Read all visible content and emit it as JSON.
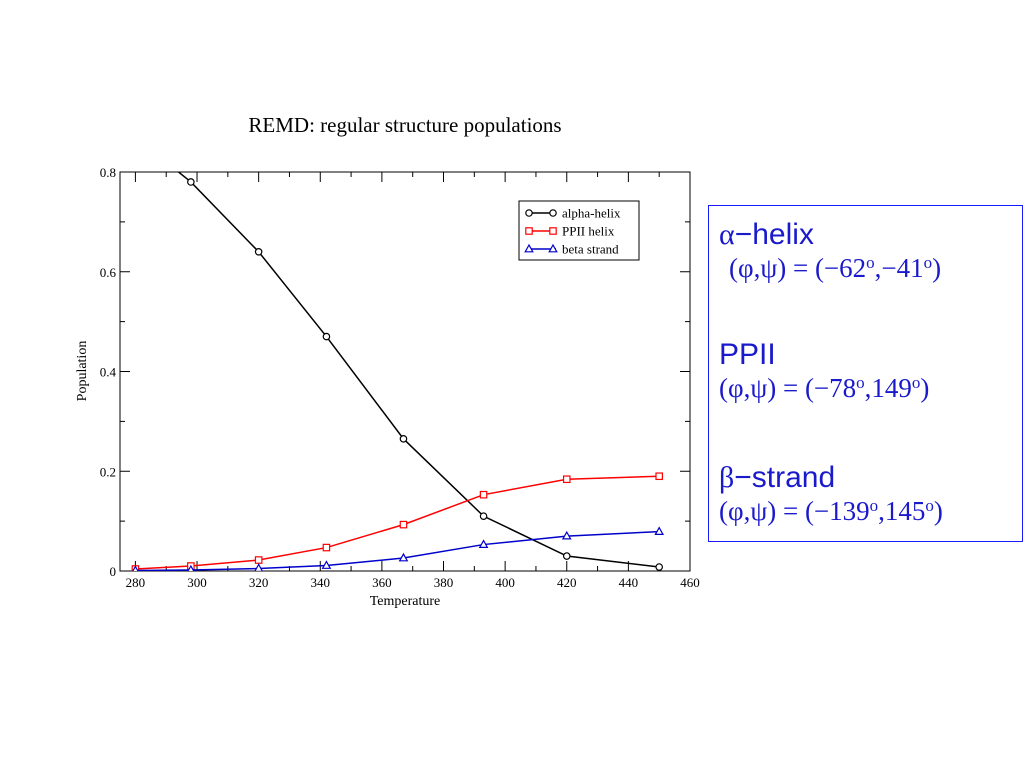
{
  "chart_data": {
    "type": "line",
    "title": "REMD: regular structure populations",
    "xlabel": "Temperature",
    "ylabel": "Population",
    "xlim": [
      275,
      460
    ],
    "ylim": [
      0,
      0.8
    ],
    "xticks": [
      "280",
      "300",
      "320",
      "340",
      "360",
      "380",
      "400",
      "420",
      "440",
      "460"
    ],
    "yticks": [
      "0",
      "0.2",
      "0.4",
      "0.6",
      "0.8"
    ],
    "grid": false,
    "legend_position": "top-right",
    "series": [
      {
        "name": "alpha-helix",
        "color": "#000000",
        "marker": "circle",
        "x": [
          280,
          298,
          320,
          342,
          367,
          393,
          420,
          450
        ],
        "values": [
          0.87,
          0.78,
          0.64,
          0.47,
          0.265,
          0.11,
          0.03,
          0.008
        ]
      },
      {
        "name": "PPII helix",
        "color": "#ff0000",
        "marker": "square",
        "x": [
          280,
          298,
          320,
          342,
          367,
          393,
          420,
          450
        ],
        "values": [
          0.004,
          0.01,
          0.022,
          0.047,
          0.093,
          0.153,
          0.184,
          0.19
        ]
      },
      {
        "name": "beta strand",
        "color": "#0000cc",
        "marker": "triangle",
        "x": [
          280,
          298,
          320,
          342,
          367,
          393,
          420,
          450
        ],
        "values": [
          0.001,
          0.002,
          0.005,
          0.011,
          0.026,
          0.053,
          0.07,
          0.079
        ]
      }
    ]
  },
  "info_box": {
    "alpha": {
      "symbol": "α",
      "name": "−helix",
      "phi_psi": "(φ,ψ) = (−62",
      "psi_val": ",−41",
      "close": ")"
    },
    "ppii": {
      "symbol": "",
      "name": "PPII",
      "phi_psi": "(φ,ψ) = (−78",
      "psi_val": ",149",
      "close": ")"
    },
    "beta": {
      "symbol": "β",
      "name": "−strand",
      "phi_psi": "(φ,ψ) = (−139",
      "psi_val": ",145",
      "close": ")"
    },
    "degree": "o"
  }
}
